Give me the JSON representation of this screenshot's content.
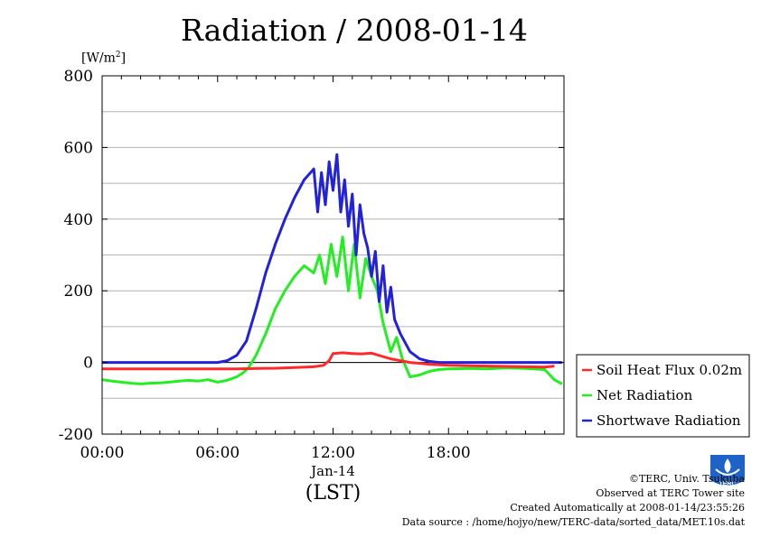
{
  "title": "Radiation / 2008-01-14",
  "unit_label_pre": "[W/m",
  "unit_label_sup": "2",
  "unit_label_post": "]",
  "footer": {
    "copyright": "©TERC, Univ. Tsukuba",
    "observed": "Observed at TERC Tower site",
    "created": "Created Automatically at 2008-01-14/23:55:26",
    "source": "Data source : /home/hojyo/new/TERC-data/sorted_data/MET.10s.dat"
  },
  "logo_text": "TERC",
  "colors": {
    "soil": "#ff2a2a",
    "net": "#22ee22",
    "shortwave": "#2222dd",
    "grid": "#b4b4b4"
  },
  "chart_data": {
    "type": "line",
    "xlabel": "(LST)",
    "date_label": "Jan-14",
    "xlim": [
      0,
      24
    ],
    "ylim": [
      -200,
      800
    ],
    "xticks": [
      {
        "value": 0,
        "label": "00:00"
      },
      {
        "value": 6,
        "label": "06:00"
      },
      {
        "value": 12,
        "label": "12:00"
      },
      {
        "value": 18,
        "label": "18:00"
      }
    ],
    "yticks": [
      -200,
      0,
      200,
      400,
      600,
      800
    ],
    "grid": true,
    "legend_position": "right",
    "series": [
      {
        "name": "Soil Heat Flux 0.02m",
        "x": [
          0,
          2,
          4,
          6,
          7,
          8,
          9,
          10,
          11,
          11.5,
          11.8,
          12,
          12.5,
          13,
          13.5,
          14,
          14.5,
          15,
          15.5,
          16,
          17,
          18,
          20,
          22,
          23,
          23.5
        ],
        "values": [
          -18,
          -18,
          -18,
          -18,
          -18,
          -17,
          -16,
          -14,
          -12,
          -8,
          5,
          25,
          27,
          25,
          24,
          26,
          18,
          10,
          5,
          0,
          -5,
          -8,
          -10,
          -12,
          -13,
          -10
        ]
      },
      {
        "name": "Net Radiation",
        "x": [
          0,
          0.5,
          1,
          1.5,
          2,
          2.5,
          3,
          3.5,
          4,
          4.5,
          5,
          5.5,
          6,
          6.5,
          7,
          7.3,
          7.6,
          8,
          8.5,
          9,
          9.5,
          10,
          10.5,
          11,
          11.3,
          11.6,
          11.9,
          12.2,
          12.5,
          12.8,
          13.1,
          13.4,
          13.7,
          14,
          14.3,
          14.6,
          15,
          15.3,
          15.6,
          16,
          16.5,
          17,
          17.5,
          18,
          19,
          20,
          21,
          22,
          23,
          23.5,
          23.9
        ],
        "values": [
          -48,
          -52,
          -55,
          -58,
          -60,
          -58,
          -57,
          -55,
          -52,
          -50,
          -52,
          -48,
          -55,
          -50,
          -40,
          -30,
          -15,
          20,
          80,
          150,
          200,
          240,
          270,
          250,
          300,
          220,
          330,
          240,
          350,
          200,
          330,
          180,
          290,
          240,
          200,
          110,
          30,
          70,
          10,
          -40,
          -35,
          -25,
          -20,
          -18,
          -17,
          -18,
          -15,
          -17,
          -20,
          -48,
          -60
        ]
      },
      {
        "name": "Shortwave Radiation",
        "x": [
          0,
          6,
          6.5,
          7,
          7.5,
          8,
          8.5,
          9,
          9.5,
          10,
          10.5,
          11,
          11.2,
          11.4,
          11.6,
          11.8,
          12,
          12.2,
          12.4,
          12.6,
          12.8,
          13,
          13.2,
          13.4,
          13.6,
          13.8,
          14,
          14.2,
          14.4,
          14.6,
          14.8,
          15,
          15.2,
          15.5,
          16,
          16.5,
          17,
          17.5,
          18,
          20,
          22,
          23.9
        ],
        "values": [
          0,
          0,
          5,
          20,
          60,
          150,
          250,
          330,
          400,
          460,
          510,
          540,
          420,
          530,
          440,
          560,
          480,
          580,
          420,
          510,
          380,
          470,
          300,
          440,
          360,
          320,
          240,
          310,
          170,
          270,
          140,
          210,
          120,
          80,
          30,
          10,
          3,
          0,
          0,
          0,
          0,
          0
        ]
      }
    ]
  }
}
